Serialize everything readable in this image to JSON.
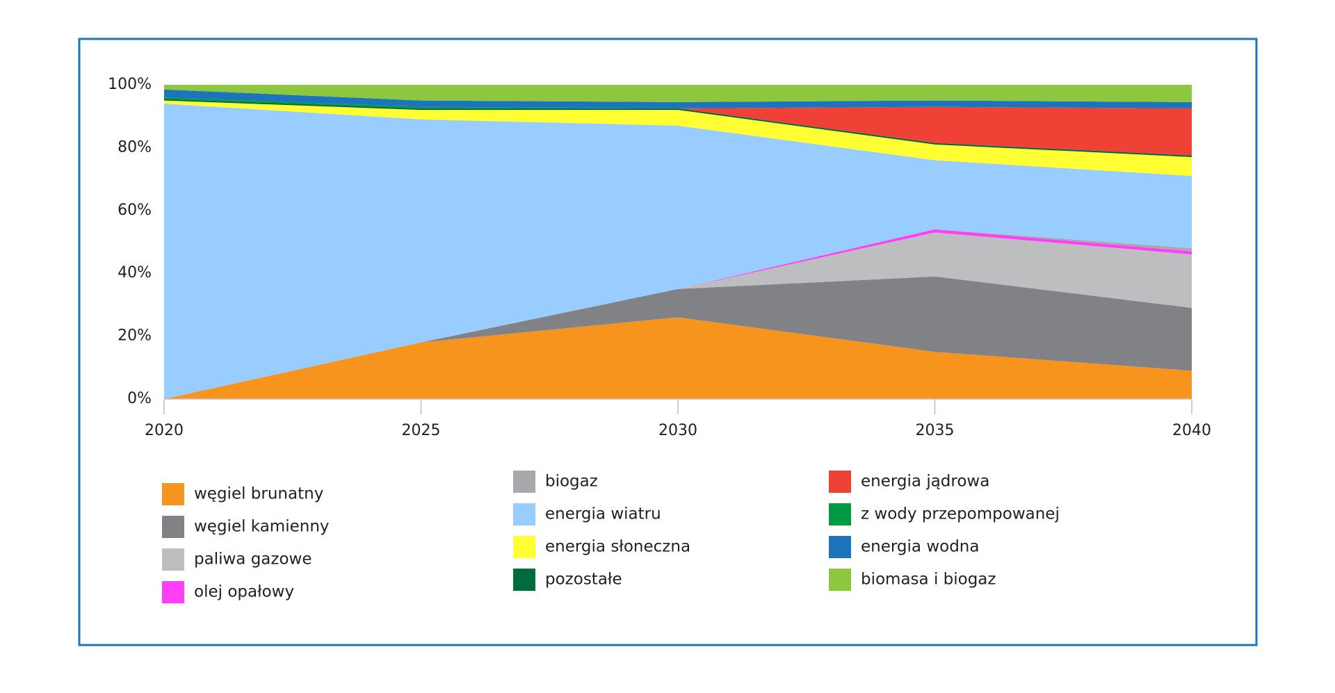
{
  "chart_data": {
    "type": "stacked_area",
    "x": [
      2020,
      2025,
      2030,
      2035,
      2040
    ],
    "xlim": [
      2020,
      2040
    ],
    "xticks": [
      2020,
      2025,
      2030,
      2035,
      2040
    ],
    "ylim": [
      0,
      100
    ],
    "yticks": [
      {
        "value": 0,
        "label": "0%"
      },
      {
        "value": 20,
        "label": "20%"
      },
      {
        "value": 40,
        "label": "40%"
      },
      {
        "value": 60,
        "label": "60%"
      },
      {
        "value": 80,
        "label": "80%"
      },
      {
        "value": 100,
        "label": "100%"
      }
    ],
    "series": [
      {
        "name": "węgiel brunatny",
        "color": "#f7941d",
        "values": [
          0,
          18,
          26,
          15,
          9
        ]
      },
      {
        "name": "węgiel kamienny",
        "color": "#808285",
        "values": [
          0,
          0,
          9,
          24,
          20
        ]
      },
      {
        "name": "paliwa gazowe",
        "color": "#bcbec0",
        "values": [
          0,
          0,
          0,
          14,
          17
        ]
      },
      {
        "name": "olej opałowy",
        "color": "#ff3ef5",
        "values": [
          0,
          0,
          0,
          1,
          1
        ]
      },
      {
        "name": "biogaz",
        "color": "#a7a9ac",
        "values": [
          0,
          0,
          0,
          0,
          1
        ]
      },
      {
        "name": "energia wiatru",
        "color": "#99ccff",
        "values": [
          94,
          71,
          52,
          22,
          23
        ]
      },
      {
        "name": "energia słoneczna",
        "color": "#ffff33",
        "values": [
          1,
          3,
          5,
          5,
          6
        ]
      },
      {
        "name": "pozostałe",
        "color": "#006b3c",
        "values": [
          0.5,
          0.5,
          0.5,
          0.5,
          0.5
        ]
      },
      {
        "name": "energia jądrowa",
        "color": "#ef4136",
        "values": [
          0,
          0,
          0,
          11.5,
          15
        ]
      },
      {
        "name": "z wody przepompowanej",
        "color": "#009a44",
        "values": [
          0.5,
          0.5,
          0,
          0,
          0
        ]
      },
      {
        "name": "energia wodna",
        "color": "#1c75bc",
        "values": [
          2.5,
          2,
          2,
          2,
          2
        ]
      },
      {
        "name": "biomasa i biogaz",
        "color": "#8dc63f",
        "values": [
          1.5,
          5,
          5.5,
          5,
          5.5
        ]
      }
    ]
  }
}
